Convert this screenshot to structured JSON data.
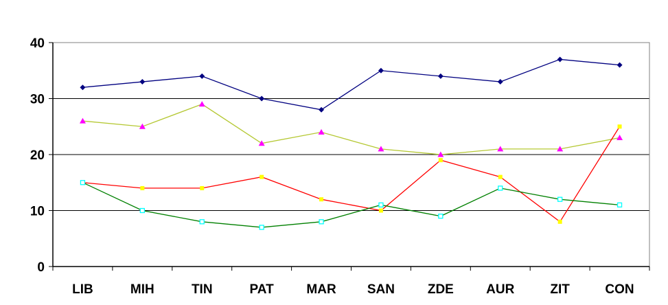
{
  "chart_data": {
    "type": "line",
    "title": "",
    "xlabel": "",
    "ylabel": "",
    "categories": [
      "LIB",
      "MIH",
      "TIN",
      "PAT",
      "MAR",
      "SAN",
      "ZDE",
      "AUR",
      "ZIT",
      "CON"
    ],
    "ylim": [
      0,
      40
    ],
    "yticks": [
      0,
      10,
      20,
      30,
      40
    ],
    "grid": true,
    "legend": "none",
    "series": [
      {
        "values": [
          32,
          33,
          34,
          30,
          28,
          35,
          34,
          33,
          37,
          36
        ],
        "line_color": "#000080",
        "marker": "diamond",
        "marker_color": "#000080"
      },
      {
        "values": [
          26,
          25,
          29,
          22,
          24,
          21,
          20,
          21,
          21,
          23
        ],
        "line_color": "#b5c833",
        "marker": "triangle",
        "marker_color": "#ff00ff"
      },
      {
        "values": [
          15,
          14,
          14,
          16,
          12,
          10,
          19,
          16,
          8,
          25
        ],
        "line_color": "#ff0000",
        "marker": "square",
        "marker_color": "#ffff00"
      },
      {
        "values": [
          15,
          10,
          8,
          7,
          8,
          11,
          9,
          14,
          12,
          11
        ],
        "line_color": "#008000",
        "marker": "square-open",
        "marker_color": "#00ffff"
      }
    ]
  }
}
